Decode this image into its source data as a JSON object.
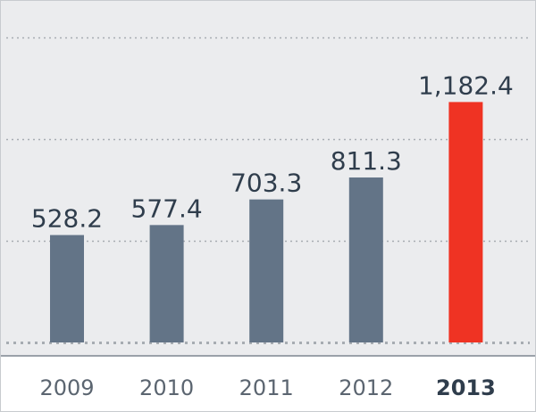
{
  "chart_data": {
    "type": "bar",
    "title": "",
    "xlabel": "",
    "ylabel": "",
    "categories": [
      "2009",
      "2010",
      "2011",
      "2012",
      "2013"
    ],
    "value_labels": [
      "528.2",
      "577.4",
      "703.3",
      "811.3",
      "1,182.4"
    ],
    "values": [
      528.2,
      577.4,
      703.3,
      811.3,
      1182.4
    ],
    "ylim": [
      0,
      1500
    ],
    "gridlines": [
      0,
      500,
      1000,
      1500
    ],
    "grid": true,
    "highlight_category": "2013",
    "colors": {
      "bar": "#637487",
      "highlight": "#ef3323",
      "grid": "#a7acb2",
      "background": "#ebecee"
    }
  }
}
